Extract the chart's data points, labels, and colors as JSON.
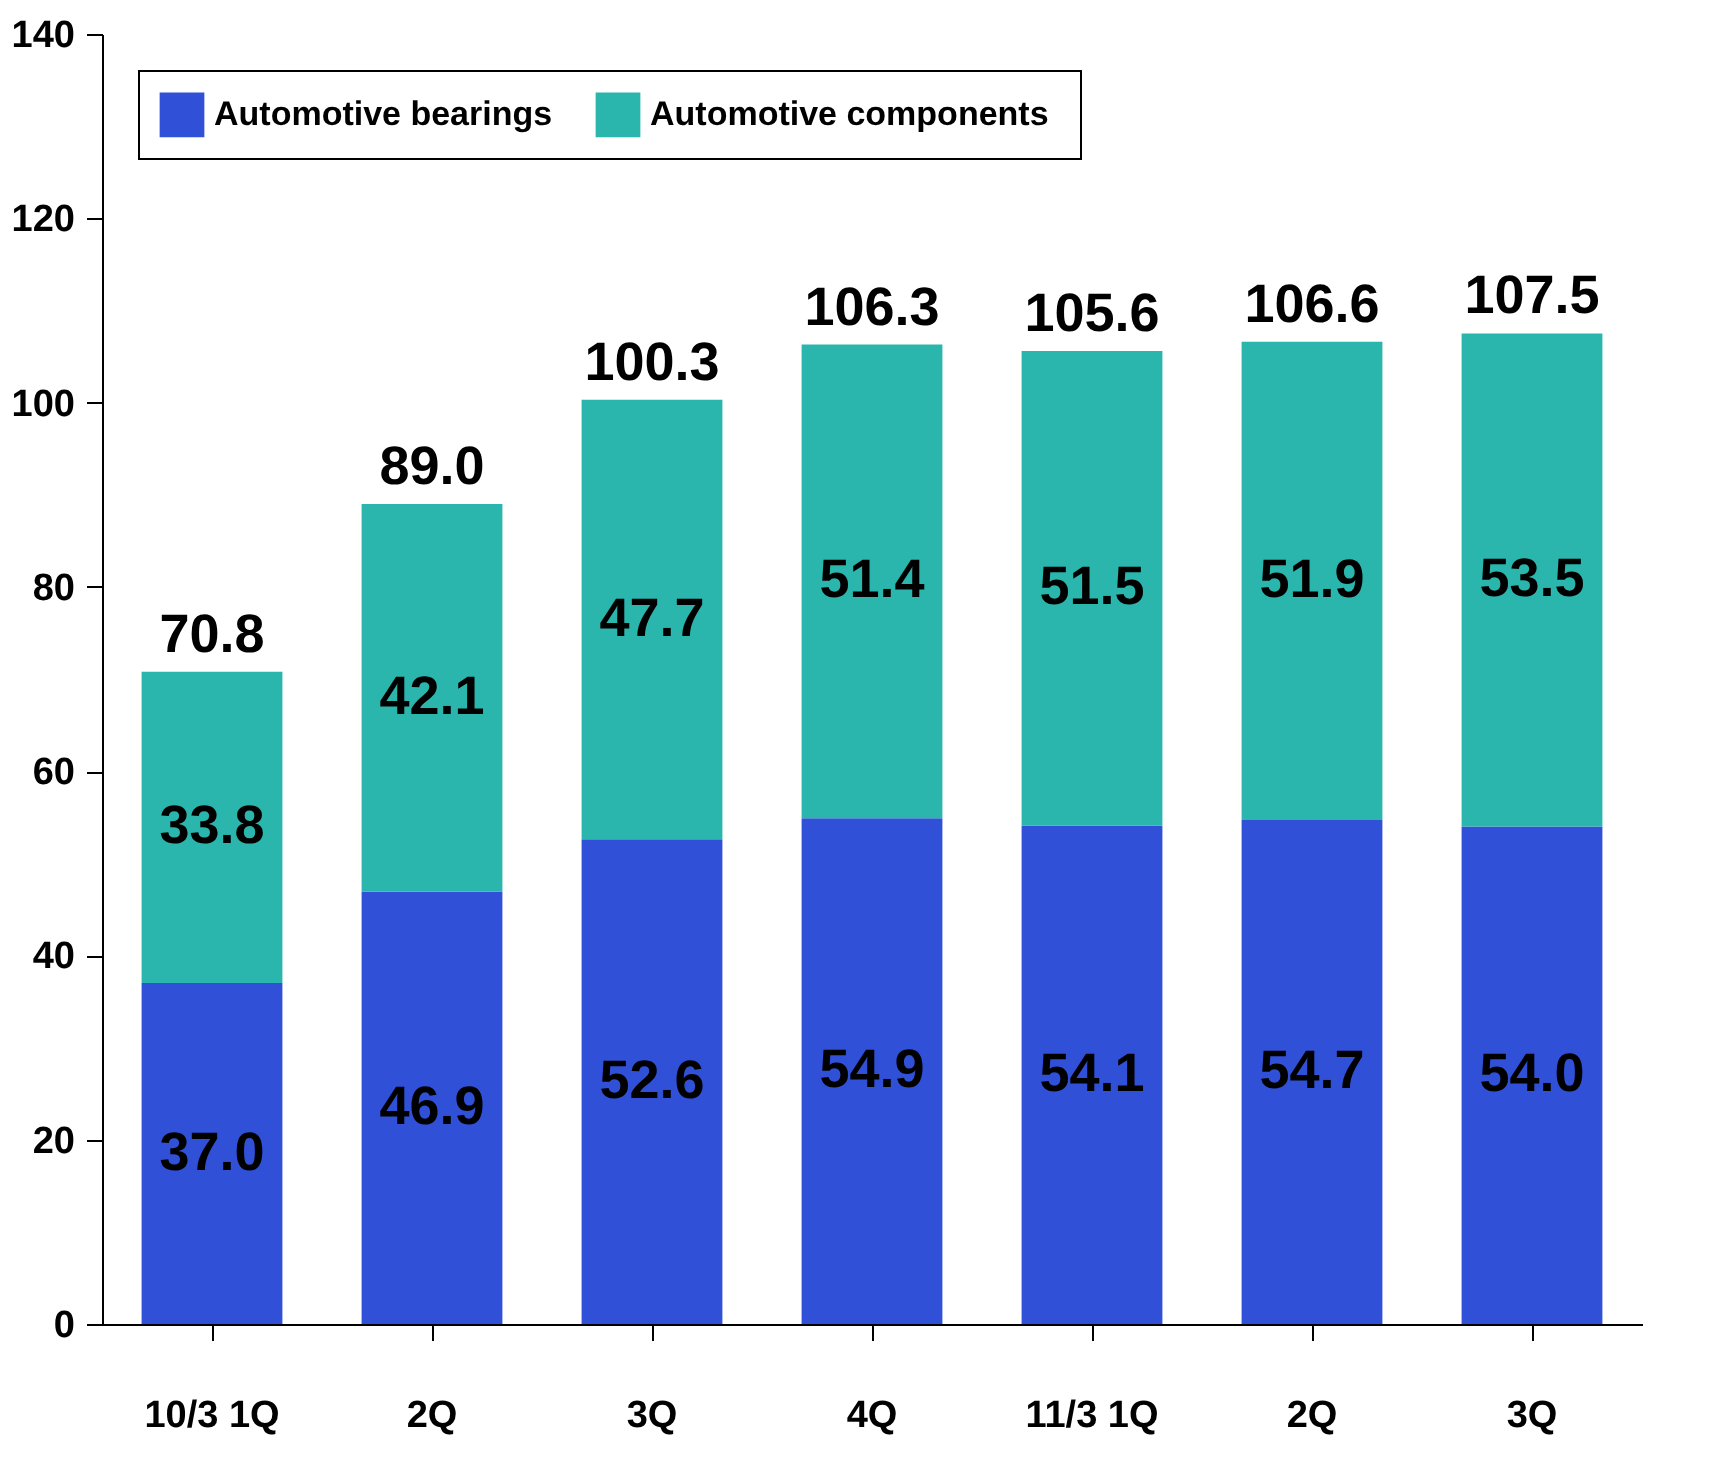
{
  "chart_data": {
    "type": "bar",
    "stacked": true,
    "categories": [
      "10/3 1Q",
      "2Q",
      "3Q",
      "4Q",
      "11/3 1Q",
      "2Q",
      "3Q"
    ],
    "series": [
      {
        "name": "Automotive bearings",
        "color": "#3050d8",
        "values": [
          37.0,
          46.9,
          52.6,
          54.9,
          54.1,
          54.7,
          54.0
        ],
        "value_labels": [
          "37.0",
          "46.9",
          "52.6",
          "54.9",
          "54.1",
          "54.7",
          "54.0"
        ]
      },
      {
        "name": "Automotive  components",
        "color": "#2ab5ad",
        "values": [
          33.8,
          42.1,
          47.7,
          51.4,
          51.5,
          51.9,
          53.5
        ],
        "value_labels": [
          "33.8",
          "42.1",
          "47.7",
          "51.4",
          "51.5",
          "51.9",
          "53.5"
        ]
      }
    ],
    "totals": [
      "70.8",
      "89.0",
      "100.3",
      "106.3",
      "105.6",
      "106.6",
      "107.5"
    ],
    "ylim": [
      0,
      140
    ],
    "yticks": [
      0,
      20,
      40,
      60,
      80,
      100,
      120,
      140
    ],
    "grid": false,
    "legend": "top"
  }
}
